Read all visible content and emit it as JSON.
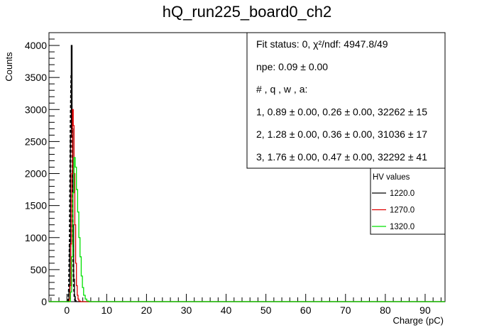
{
  "chart_data": {
    "type": "line",
    "title": "hQ_run225_board0_ch2",
    "xlabel": "Charge (pC)",
    "ylabel": "Counts",
    "xlim": [
      -4.5,
      95
    ],
    "ylim": [
      0,
      4200
    ],
    "x_ticks": [
      0,
      10,
      20,
      30,
      40,
      50,
      60,
      70,
      80,
      90
    ],
    "y_ticks": [
      0,
      500,
      1000,
      1500,
      2000,
      2500,
      3000,
      3500,
      4000
    ],
    "x_tick_labels": [
      "0",
      "10",
      "20",
      "30",
      "40",
      "50",
      "60",
      "70",
      "80",
      "90"
    ],
    "y_tick_labels": [
      "0",
      "500",
      "1000",
      "1500",
      "2000",
      "2500",
      "3000",
      "3500",
      "4000"
    ],
    "grid": false,
    "stats_box": {
      "lines": [
        "Fit status: 0, χ²/ndf: 4947.8/49",
        "npe: 0.09 ± 0.00",
        "# , q , w , a:",
        "1, 0.89 ± 0.00, 0.26 ± 0.00, 32262 ± 15",
        "2, 1.28 ± 0.00, 0.36 ± 0.00, 31036 ± 17",
        "3, 1.76 ± 0.00, 0.47 ± 0.00, 32292 ± 41"
      ]
    },
    "legend": {
      "title": "HV values",
      "placement": "right"
    },
    "series": [
      {
        "name": "1220.0",
        "color": "#000000",
        "x": [
          0.3,
          0.5,
          0.7,
          0.9,
          1.1,
          1.3,
          1.5,
          1.7,
          1.9,
          2.1,
          2.3
        ],
        "values": [
          0,
          150,
          900,
          2600,
          4000,
          2700,
          1200,
          350,
          80,
          15,
          0
        ],
        "fit_x": [
          0.3,
          0.5,
          0.7,
          0.9,
          1.1,
          1.3,
          1.5,
          1.7,
          1.9,
          2.1,
          2.3
        ],
        "fit_values": [
          0,
          200,
          1000,
          2700,
          3550,
          2500,
          1100,
          300,
          60,
          10,
          0
        ]
      },
      {
        "name": "1270.0",
        "color": "#e00000",
        "x": [
          0.4,
          0.6,
          0.8,
          1.0,
          1.2,
          1.4,
          1.6,
          1.8,
          2.0,
          2.2,
          2.4,
          2.6,
          2.8,
          3.0,
          3.4
        ],
        "values": [
          0,
          40,
          250,
          900,
          2000,
          3000,
          2750,
          2000,
          1200,
          600,
          250,
          100,
          40,
          10,
          0
        ]
      },
      {
        "name": "1320.0",
        "color": "#00e000",
        "x": [
          0.6,
          0.9,
          1.2,
          1.5,
          1.8,
          2.1,
          2.4,
          2.7,
          3.0,
          3.3,
          3.6,
          3.9,
          4.2,
          4.6,
          5.0,
          5.6
        ],
        "values": [
          0,
          150,
          700,
          1700,
          2250,
          2100,
          1750,
          1400,
          1000,
          700,
          400,
          220,
          100,
          40,
          10,
          0
        ]
      }
    ]
  }
}
